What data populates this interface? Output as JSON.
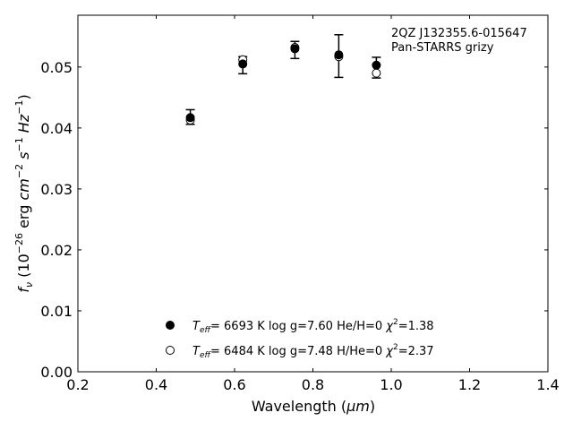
{
  "chart_data": {
    "type": "scatter",
    "xlabel_text": "Wavelength (",
    "xlabel_unit": "μm",
    "ylabel_html": "f<tspan font-style='italic'></tspan>",
    "ylabel_parts": {
      "f": "f",
      "nu": "ν",
      "open": " (10",
      "exp_neg26": "−26",
      "erg": " erg ",
      "cm": "cm",
      "exp_neg2": "−2",
      "s": " s",
      "exp_neg1": "−1",
      "hz": " Hz",
      "exp_neg1b": "−1",
      "close": ")"
    },
    "xlim": [
      0.2,
      1.4
    ],
    "ylim": [
      0.0,
      0.0585
    ],
    "xticks": [
      "0.2",
      "0.4",
      "0.6",
      "0.8",
      "1.0",
      "1.2",
      "1.4"
    ],
    "xtick_values": [
      0.2,
      0.4,
      0.6,
      0.8,
      1.0,
      1.2,
      1.4
    ],
    "yticks": [
      "0.00",
      "0.01",
      "0.02",
      "0.03",
      "0.04",
      "0.05"
    ],
    "ytick_values": [
      0.0,
      0.01,
      0.02,
      0.03,
      0.04,
      0.05
    ],
    "annotation": [
      "2QZ J132355.6-015647",
      "Pan-STARRS grizy"
    ],
    "observed": {
      "x": [
        0.487,
        0.621,
        0.754,
        0.866,
        0.962
      ],
      "y": [
        0.0418,
        0.0503,
        0.0528,
        0.0518,
        0.0499
      ],
      "yerr": [
        0.0012,
        0.0014,
        0.0014,
        0.0035,
        0.0017
      ]
    },
    "series": [
      {
        "marker": "filled",
        "x": [
          0.487,
          0.621,
          0.754,
          0.866,
          0.962
        ],
        "y": [
          0.0417,
          0.0505,
          0.053,
          0.052,
          0.0503
        ],
        "legend": {
          "teff_sym": "T",
          "teff_sub": "eff",
          "text": "=  6693 K  log g=7.60  He/H=0  ",
          "chi": "χ",
          "chi_sup": "2",
          "chi_val": "=1.38"
        }
      },
      {
        "marker": "open",
        "x": [
          0.487,
          0.621,
          0.754,
          0.866,
          0.962
        ],
        "y": [
          0.0413,
          0.0512,
          0.0532,
          0.0517,
          0.049
        ],
        "legend": {
          "teff_sym": "T",
          "teff_sub": "eff",
          "text": "=  6484 K  log g=7.48  H/He=0  ",
          "chi": "χ",
          "chi_sup": "2",
          "chi_val": "=2.37"
        }
      }
    ]
  }
}
